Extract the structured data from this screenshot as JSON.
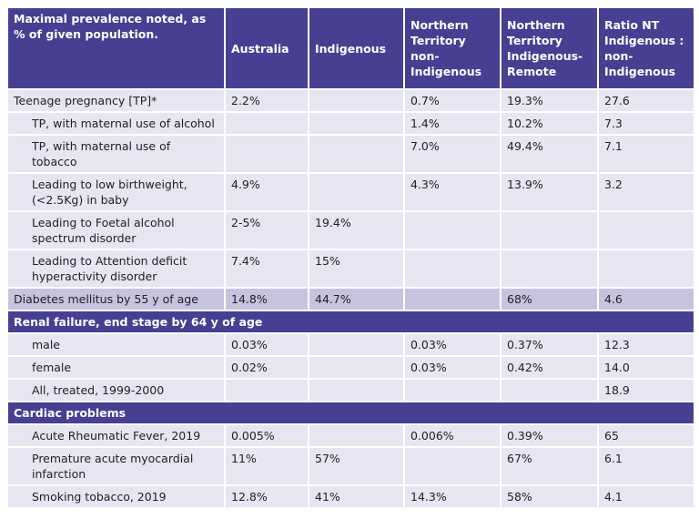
{
  "columns": [
    "Maximal prevalence noted, as % of given population.",
    "Australia",
    "Indigenous",
    "Northern Territory non-Indigenous",
    "Northern Territory Indigenous-Remote",
    "Ratio NT Indigenous : non-Indigenous"
  ],
  "rows": [
    {
      "type": "row",
      "cells": [
        "Teenage pregnancy [TP]*",
        "2.2%",
        "",
        "0.7%",
        "19.3%",
        "27.6"
      ]
    },
    {
      "type": "sub",
      "cells": [
        "TP, with maternal use of alcohol",
        "",
        "",
        "1.4%",
        "10.2%",
        "7.3"
      ]
    },
    {
      "type": "sub",
      "cells": [
        "TP, with maternal use of tobacco",
        "",
        "",
        "7.0%",
        "49.4%",
        "7.1"
      ]
    },
    {
      "type": "sub",
      "cells": [
        "Leading to low birthweight, (<2.5Kg) in baby",
        "4.9%",
        "",
        "4.3%",
        "13.9%",
        "3.2"
      ]
    },
    {
      "type": "sub",
      "cells": [
        "Leading to Foetal alcohol spectrum disorder",
        "2-5%",
        "19.4%",
        "",
        "",
        ""
      ]
    },
    {
      "type": "sub",
      "cells": [
        "Leading to Attention deficit hyperactivity disorder",
        "7.4%",
        "15%",
        "",
        "",
        ""
      ]
    },
    {
      "type": "hl",
      "cells": [
        "Diabetes mellitus by 55 y of age",
        "14.8%",
        "44.7%",
        "",
        "68%",
        "4.6"
      ]
    },
    {
      "type": "sec",
      "cells": [
        "Renal failure, end stage by 64 y of age"
      ]
    },
    {
      "type": "sub",
      "cells": [
        "male",
        "0.03%",
        "",
        "0.03%",
        "0.37%",
        "12.3"
      ]
    },
    {
      "type": "sub",
      "cells": [
        "female",
        "0.02%",
        "",
        "0.03%",
        "0.42%",
        "14.0"
      ]
    },
    {
      "type": "sub",
      "cells": [
        "All, treated, 1999-2000",
        "",
        "",
        "",
        "",
        "18.9"
      ]
    },
    {
      "type": "sec",
      "cells": [
        "Cardiac problems"
      ]
    },
    {
      "type": "sub",
      "cells": [
        "Acute Rheumatic Fever, 2019",
        "0.005%",
        "",
        "0.006%",
        "0.39%",
        "65"
      ]
    },
    {
      "type": "sub",
      "cells": [
        "Premature acute myocardial infarction",
        "11%",
        "57%",
        "",
        "67%",
        "6.1"
      ]
    },
    {
      "type": "sub",
      "cells": [
        "Smoking tobacco, 2019",
        "12.8%",
        "41%",
        "14.3%",
        "58%",
        "4.1"
      ]
    }
  ],
  "colors": {
    "header": "#463f92",
    "row": "#e6e5f1",
    "highlight": "#c7c3df"
  }
}
